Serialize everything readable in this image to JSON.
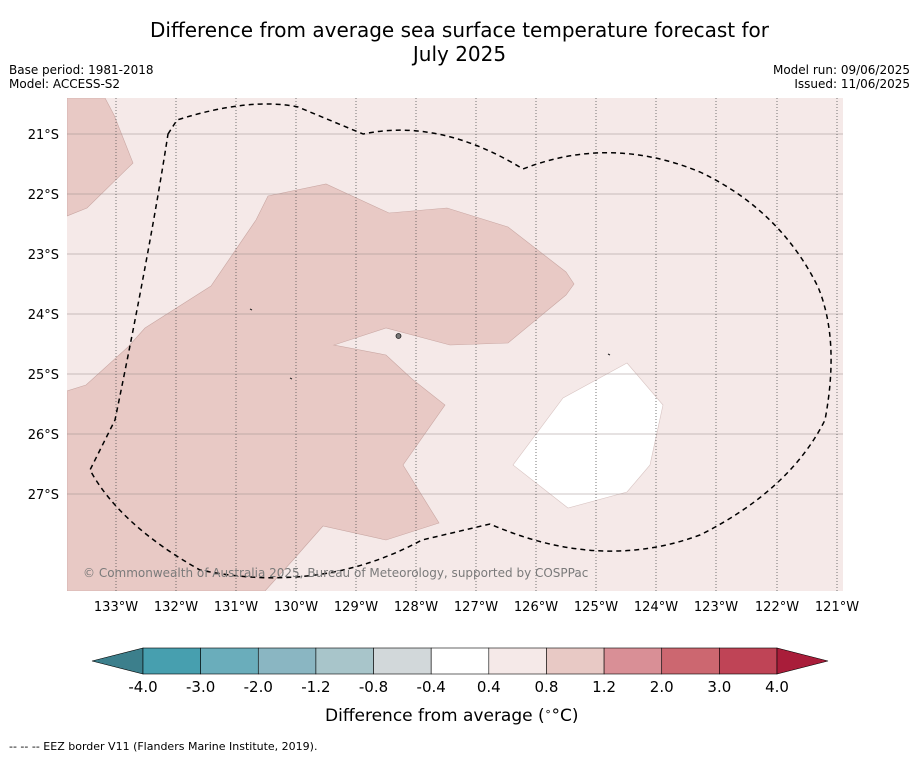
{
  "title_line1": "Difference from average sea surface temperature forecast for",
  "title_line2": "July 2025",
  "meta_left": {
    "base_period": "Base period: 1981-2018",
    "model": "Model: ACCESS-S2"
  },
  "meta_right": {
    "model_run": "Model run: 09/06/2025",
    "issued": "Issued: 11/06/2025"
  },
  "map": {
    "lon_range": [
      "133.8°W",
      "121.1°W"
    ],
    "lat_range": [
      "20.6°S",
      "28.8°S"
    ],
    "lat_labels": [
      "21°S",
      "22°S",
      "23°S",
      "24°S",
      "25°S",
      "26°S",
      "27°S"
    ],
    "lon_labels": [
      "133°W",
      "132°W",
      "131°W",
      "130°W",
      "129°W",
      "128°W",
      "127°W",
      "126°W",
      "125°W",
      "124°W",
      "123°W",
      "122°W",
      "121°W"
    ],
    "watermark": "© Commonwealth of Australia 2025, Bureau of Meteorology, supported by COSPPac",
    "regions": [
      {
        "category": "0.4 to 0.8",
        "color": "#f5e9e8",
        "extent": "background"
      },
      {
        "category": "0.8 to 1.2",
        "color": "#e8c9c5",
        "extent": "north-west corner and large central-west area"
      },
      {
        "category": "-0.4 to 0.4",
        "color": "#ffffff",
        "extent": "patch centred near 124.8°W 25.8°S"
      }
    ],
    "eez_border_style": "dashed"
  },
  "colorbar": {
    "ticks": [
      "-4.0",
      "-3.0",
      "-2.0",
      "-1.2",
      "-0.8",
      "-0.4",
      "0.4",
      "0.8",
      "1.2",
      "2.0",
      "3.0",
      "4.0"
    ],
    "colors": [
      "#479faf",
      "#6aadbb",
      "#8ab6c2",
      "#a8c5ca",
      "#d2d8da",
      "#ffffff",
      "#f5e9e8",
      "#e8c9c5",
      "#d98f96",
      "#cc6770",
      "#bf4456"
    ],
    "extend_low_color": "#3c7f8c",
    "extend_high_color": "#a91d3a",
    "label": "Difference from average (",
    "label_unit": "°C",
    "label_close": ")"
  },
  "footer": "--  --  -- EEZ border V11 (Flanders Marine Institute, 2019)."
}
